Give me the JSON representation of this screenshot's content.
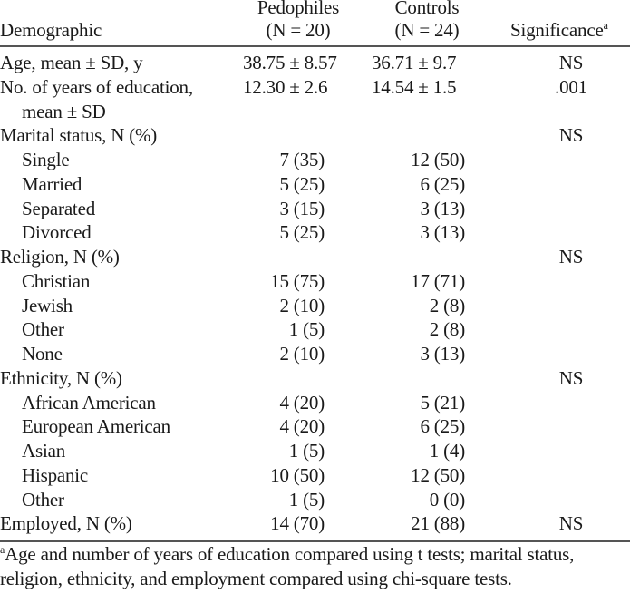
{
  "header": {
    "demographic": "Demographic",
    "pedophiles": "Pedophiles",
    "pedophiles_n": "(N = 20)",
    "controls": "Controls",
    "controls_n": "(N = 24)",
    "significance": "Significance",
    "significance_note": "a"
  },
  "rows": [
    {
      "label": "Age, mean ± SD, y",
      "ped": "38.75 ± 8.57",
      "con": "36.71 ± 9.7",
      "sig": "NS",
      "indent": false,
      "mean": true
    },
    {
      "label": "No. of years of education,",
      "ped": "12.30 ± 2.6",
      "con": "14.54 ± 1.5",
      "sig": ".001",
      "indent": false,
      "mean": true
    },
    {
      "label": "mean ± SD",
      "ped": "",
      "con": "",
      "sig": "",
      "indent": true,
      "mean": true
    },
    {
      "label": "Marital status, N (%)",
      "ped": "",
      "con": "",
      "sig": "NS",
      "indent": false
    },
    {
      "label": "Single",
      "ped": "7 (35)",
      "con": "12 (50)",
      "sig": "",
      "indent": true
    },
    {
      "label": "Married",
      "ped": "5 (25)",
      "con": "6 (25)",
      "sig": "",
      "indent": true
    },
    {
      "label": "Separated",
      "ped": "3 (15)",
      "con": "3 (13)",
      "sig": "",
      "indent": true
    },
    {
      "label": "Divorced",
      "ped": "5 (25)",
      "con": "3 (13)",
      "sig": "",
      "indent": true
    },
    {
      "label": "Religion, N (%)",
      "ped": "",
      "con": "",
      "sig": "NS",
      "indent": false
    },
    {
      "label": "Christian",
      "ped": "15 (75)",
      "con": "17 (71)",
      "sig": "",
      "indent": true
    },
    {
      "label": "Jewish",
      "ped": "2 (10)",
      "con": "2 (8)",
      "sig": "",
      "indent": true
    },
    {
      "label": "Other",
      "ped": "1 (5)",
      "con": "2 (8)",
      "sig": "",
      "indent": true
    },
    {
      "label": "None",
      "ped": "2 (10)",
      "con": "3 (13)",
      "sig": "",
      "indent": true
    },
    {
      "label": "Ethnicity, N (%)",
      "ped": "",
      "con": "",
      "sig": "NS",
      "indent": false
    },
    {
      "label": "African American",
      "ped": "4 (20)",
      "con": "5 (21)",
      "sig": "",
      "indent": true
    },
    {
      "label": "European American",
      "ped": "4 (20)",
      "con": "6 (25)",
      "sig": "",
      "indent": true
    },
    {
      "label": "Asian",
      "ped": "1 (5)",
      "con": "1 (4)",
      "sig": "",
      "indent": true
    },
    {
      "label": "Hispanic",
      "ped": "10 (50)",
      "con": "12 (50)",
      "sig": "",
      "indent": true
    },
    {
      "label": "Other",
      "ped": "1 (5)",
      "con": "0 (0)",
      "sig": "",
      "indent": true
    },
    {
      "label": "Employed, N (%)",
      "ped": "14 (70)",
      "con": "21 (88)",
      "sig": "NS",
      "indent": false
    }
  ],
  "footnote": {
    "mark": "a",
    "text": "Age and number of years of education compared using t tests; marital status, religion, ethnicity, and employment compared using chi-square tests."
  }
}
